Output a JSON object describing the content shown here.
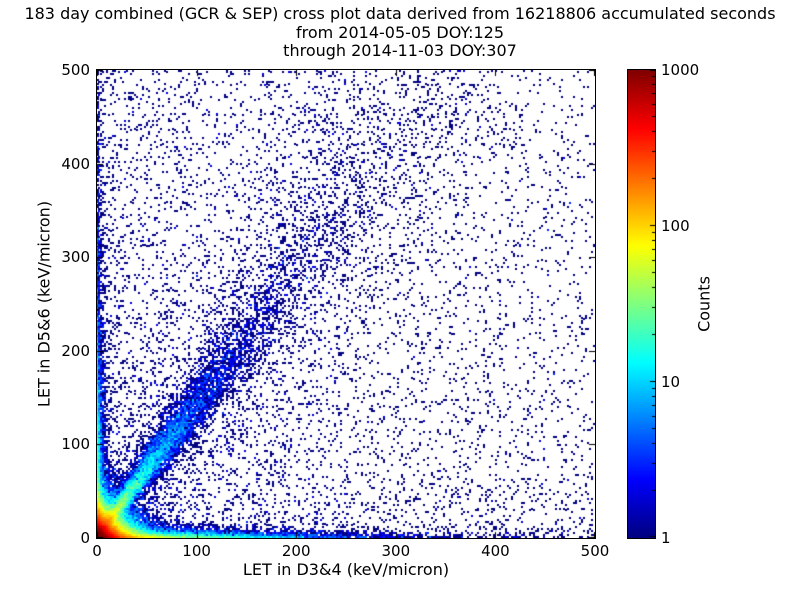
{
  "chart_data": {
    "type": "heatmap",
    "title": "183 day combined (GCR & SEP) cross plot data derived from 16218806 accumulated seconds",
    "subtitle": [
      "from 2014-05-05 DOY:125",
      "through 2014-11-03 DOY:307"
    ],
    "xlabel": "LET in D3&4 (keV/micron)",
    "ylabel": "LET in D5&6 (keV/micron)",
    "xlim": [
      0,
      500
    ],
    "ylim": [
      0,
      500
    ],
    "x_ticks": [
      0,
      100,
      200,
      300,
      400,
      500
    ],
    "y_ticks": [
      0,
      100,
      200,
      300,
      400,
      500
    ],
    "grid": false,
    "colorbar": {
      "label": "Counts",
      "scale": "log",
      "min": 1,
      "max": 1000,
      "ticks": [
        1,
        10,
        100,
        1000
      ],
      "colormap": "jet",
      "position": "right"
    },
    "features": [
      "intense hotspot at the origin reaching ~1000 counts (dark red core with orange/yellow fringe)",
      "high-count band hugging the x-axis (LET D5&6 < ~5) extending to ~120 keV/micron, yellow fading to cyan then blue",
      "band hugging the y-axis (LET D3&4 < ~5) extending to ~300 keV/micron, cyan fading to blue",
      "diagonal coincidence track y = ~1.43x from the origin to (350,500); green/cyan near the origin, becoming a sparse dark-blue band at high LET",
      "sparse single-count (dark blue) background scattered over the whole plane, denser at low LET values"
    ],
    "generation": {
      "seed": 42,
      "bins": 250,
      "components": [
        {
          "name": "origin-hotspot",
          "type": "exp2d",
          "n": 60000,
          "mean_x": 10,
          "mean_y": 10
        },
        {
          "name": "x-axis-band",
          "type": "exp2d",
          "n": 8500,
          "mean_x": 70,
          "mean_y": 3
        },
        {
          "name": "y-axis-band",
          "type": "exp2d",
          "n": 6000,
          "mean_x": 2.5,
          "mean_y": 90
        },
        {
          "name": "diagonal-track",
          "type": "diag_exp",
          "n": 12000,
          "slope": 1.43,
          "mean_t": 95,
          "sigma0": 1.5,
          "sigma_k": 0.05
        },
        {
          "name": "diagonal-halo",
          "type": "diag_uniform",
          "n": 2500,
          "slope": 1.43,
          "t_max": 620,
          "sigma0": 22,
          "sigma_k": 0.1
        },
        {
          "name": "background-low-bias",
          "type": "power",
          "n": 4500,
          "exponent": 1.6
        },
        {
          "name": "background-uniform",
          "type": "uniform",
          "n": 1500
        }
      ]
    }
  }
}
